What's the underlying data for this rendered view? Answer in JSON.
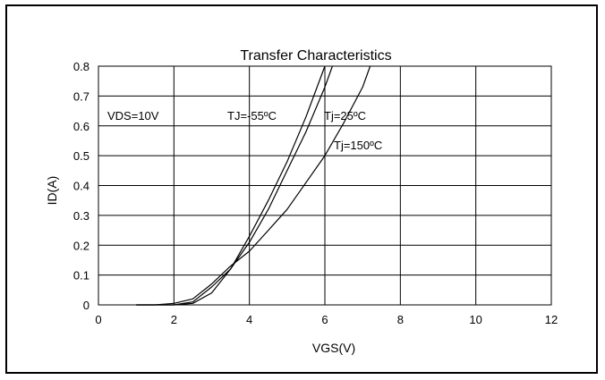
{
  "chart_data": {
    "type": "line",
    "title": "Transfer Characteristics",
    "xlabel": "VGS(V)",
    "ylabel": "ID(A)",
    "xlim": [
      0,
      12
    ],
    "ylim": [
      0,
      0.8
    ],
    "x_ticks": [
      "0",
      "2",
      "4",
      "6",
      "8",
      "10",
      "12"
    ],
    "y_ticks": [
      "0",
      "0.1",
      "0.2",
      "0.3",
      "0.4",
      "0.5",
      "0.6",
      "0.7",
      "0.8"
    ],
    "grid": true,
    "annotations": {
      "condition": "VDS=10V",
      "tj_minus55": "TJ=-55ºC",
      "tj_25": "Tj=25ºC",
      "tj_150": "Tj=150ºC"
    },
    "series": [
      {
        "name": "TJ=-55ºC",
        "x": [
          1.0,
          1.5,
          2.0,
          2.5,
          3.0,
          3.5,
          4.0,
          4.5,
          5.0,
          5.5,
          6.0
        ],
        "y": [
          0.0,
          0.0,
          0.0,
          0.005,
          0.04,
          0.12,
          0.23,
          0.35,
          0.48,
          0.63,
          0.8
        ]
      },
      {
        "name": "Tj=25ºC",
        "x": [
          1.0,
          1.5,
          2.0,
          2.5,
          3.0,
          3.5,
          4.0,
          4.5,
          5.0,
          5.5,
          6.0,
          6.2
        ],
        "y": [
          0.0,
          0.0,
          0.0,
          0.01,
          0.06,
          0.12,
          0.21,
          0.32,
          0.45,
          0.58,
          0.73,
          0.8
        ]
      },
      {
        "name": "Tj=150ºC",
        "x": [
          1.0,
          1.5,
          2.0,
          2.5,
          3.0,
          3.5,
          4.0,
          4.5,
          5.0,
          5.5,
          6.0,
          6.5,
          7.0,
          7.2
        ],
        "y": [
          0.0,
          0.0,
          0.005,
          0.02,
          0.07,
          0.13,
          0.18,
          0.25,
          0.32,
          0.41,
          0.5,
          0.61,
          0.73,
          0.8
        ]
      }
    ]
  }
}
